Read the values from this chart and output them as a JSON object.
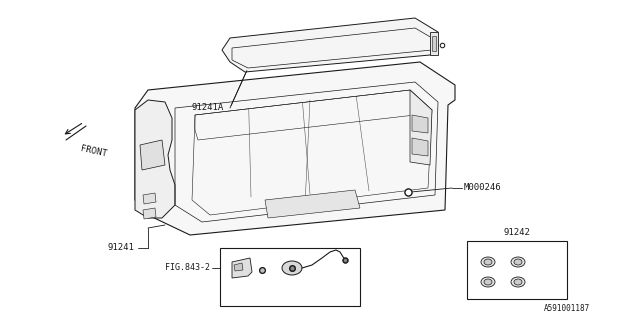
{
  "bg_color": "#ffffff",
  "lc": "#1a1a1a",
  "text_color": "#1a1a1a",
  "label_91241A": "91241A",
  "label_91241": "91241",
  "label_M000246": "M000246",
  "label_91242": "91242",
  "fig_label": "FIG.843-2",
  "diagram_id": "A591001187",
  "front_label": "FRONT",
  "fig_width": 6.4,
  "fig_height": 3.2,
  "dpi": 100
}
